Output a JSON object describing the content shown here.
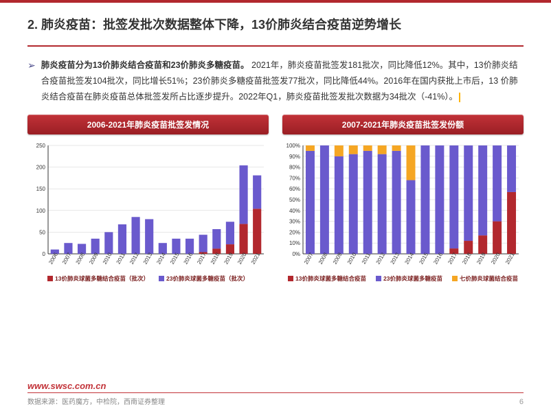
{
  "header": {
    "title": "2. 肺炎疫苗：批签发批次数据整体下降，13价肺炎结合疫苗逆势增长"
  },
  "paragraph": {
    "bold": "肺炎疫苗分为13价肺炎结合疫苗和23价肺炎多糖疫苗。",
    "rest": " 2021年，肺炎疫苗批签发181批次，同比降低12%。其中，13价肺炎结合疫苗批签发104批次，同比增长51%；23价肺炎多糖疫苗批签发77批次，同比降低44%。2016年在国内获批上市后，13 价肺炎结合疫苗在肺炎疫苗总体批签发所占比逐步提升。2022年Q1，肺炎疫苗批签发批次数据为34批次（-41%）。"
  },
  "pill_left": "2006-2021年肺炎疫苗批签发情况",
  "pill_right": "2007-2021年肺炎疫苗批签发份额",
  "chart_left": {
    "type": "stacked-bar",
    "ylim": [
      0,
      250
    ],
    "ytick_step": 50,
    "years": [
      "2006",
      "2007",
      "2008",
      "2009",
      "2010",
      "2011",
      "2012",
      "2013",
      "2014",
      "2015",
      "2016",
      "2017",
      "2018",
      "2019",
      "2020",
      "2021"
    ],
    "series": [
      {
        "name": "13价肺炎球菌多糖结合疫苗（批次）",
        "color": "#b2282e",
        "values": [
          0,
          0,
          0,
          0,
          0,
          0,
          0,
          0,
          0,
          0,
          0,
          4,
          12,
          22,
          69,
          104
        ]
      },
      {
        "name": "23价肺炎球菌多糖疫苗（批次）",
        "color": "#6a5acd",
        "values": [
          10,
          25,
          23,
          35,
          50,
          68,
          85,
          80,
          25,
          35,
          35,
          40,
          45,
          52,
          135,
          77
        ]
      }
    ],
    "axis_color": "#333",
    "grid_color": "#cfcfcf",
    "label_fontsize": 8,
    "tick_fontsize": 8,
    "legend_color": "#7a1e1e"
  },
  "chart_right": {
    "type": "stacked-bar-100",
    "ylim": [
      0,
      100
    ],
    "ytick_step": 10,
    "years": [
      "2007",
      "2008",
      "2009",
      "2010",
      "2011",
      "2012",
      "2013",
      "2014",
      "2015",
      "2016",
      "2017",
      "2018",
      "2019",
      "2020",
      "2021"
    ],
    "series": [
      {
        "name": "13价肺炎球菌多糖结合疫苗",
        "color": "#b2282e",
        "values": [
          0,
          0,
          0,
          0,
          0,
          0,
          0,
          0,
          0,
          0,
          5,
          12,
          17,
          30,
          57
        ]
      },
      {
        "name": "23价肺炎球菌多糖疫苗",
        "color": "#6a5acd",
        "values": [
          95,
          100,
          90,
          92,
          95,
          92,
          95,
          68,
          100,
          100,
          95,
          88,
          83,
          70,
          43
        ]
      },
      {
        "name": "七价肺炎球菌结合疫苗",
        "color": "#f5a623",
        "values": [
          5,
          0,
          10,
          8,
          5,
          8,
          5,
          32,
          0,
          0,
          0,
          0,
          0,
          0,
          0
        ]
      }
    ],
    "axis_color": "#333",
    "grid_color": "#cfcfcf",
    "label_fontsize": 8,
    "tick_fontsize": 8,
    "legend_color": "#7a1e1e"
  },
  "footer": {
    "url": "www.swsc.com.cn",
    "source": "数据来源：医药魔方，中检院，西南证券整理",
    "page": "6"
  }
}
